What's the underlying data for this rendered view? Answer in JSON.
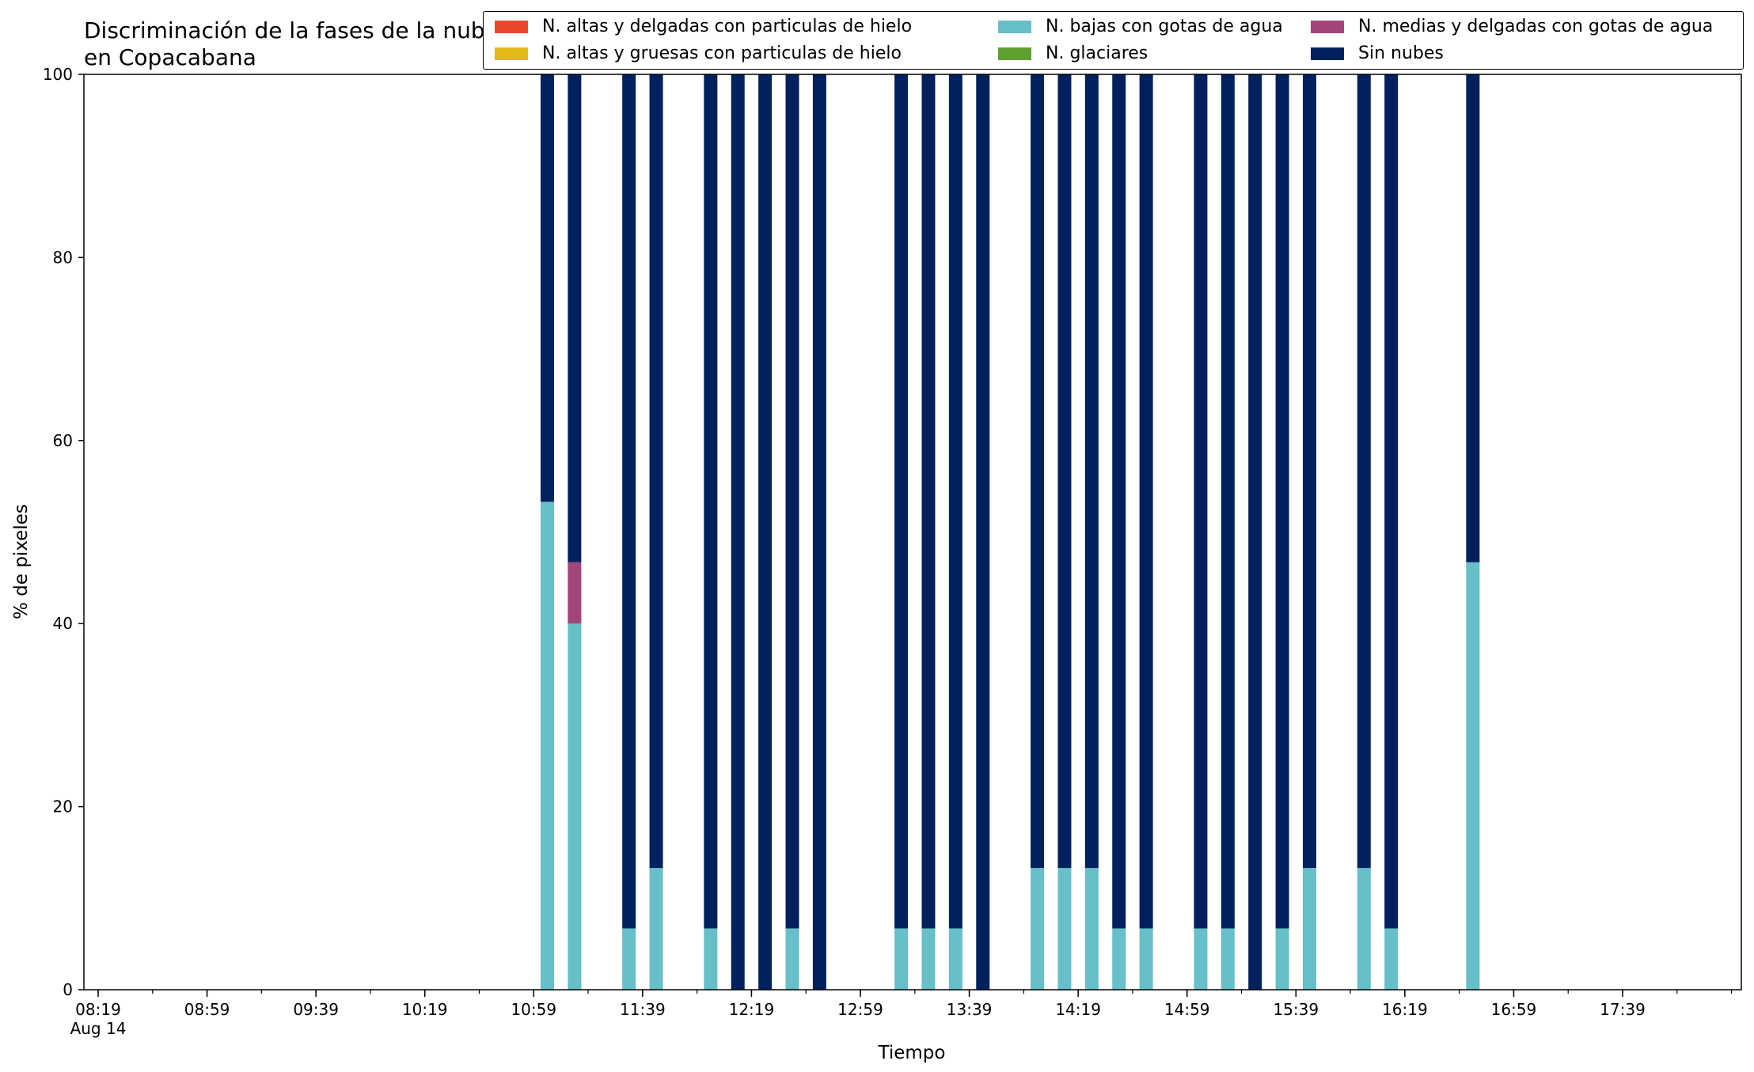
{
  "chart_data": {
    "type": "bar",
    "stacked": true,
    "title": "Discriminación de la fases de la nube en Copacabana",
    "xlabel": "Tiempo",
    "ylabel": "% de pixeles",
    "ylim": [
      0,
      100
    ],
    "yticks": [
      "0",
      "20",
      "40",
      "60",
      "80",
      "100"
    ],
    "xticks": [
      "08:19\nAug 14",
      "08:59",
      "09:39",
      "10:19",
      "10:59",
      "11:39",
      "12:19",
      "12:59",
      "13:39",
      "14:19",
      "14:59",
      "15:39",
      "16:19",
      "16:59",
      "17:39"
    ],
    "legend_position": "top-right",
    "colors": {
      "hielo_delgadas": "#e8492d",
      "hielo_gruesas": "#e4b91c",
      "gotas_bajas": "#66bfc9",
      "glaciares": "#5fa12e",
      "gotas_medias": "#a2457a",
      "sin_nubes": "#00215d"
    },
    "legend": [
      {
        "key": "hielo_delgadas",
        "label": "N. altas y delgadas con particulas de hielo"
      },
      {
        "key": "hielo_gruesas",
        "label": "N. altas y gruesas con particulas de hielo"
      },
      {
        "key": "gotas_bajas",
        "label": "N. bajas con gotas de agua"
      },
      {
        "key": "glaciares",
        "label": "N. glaciares"
      },
      {
        "key": "gotas_medias",
        "label": "N. medias y delgadas con gotas de agua"
      },
      {
        "key": "sin_nubes",
        "label": "Sin nubes"
      }
    ],
    "bars": [
      {
        "time": "11:04",
        "gotas_bajas": 53.3,
        "gotas_medias": 0,
        "sin_nubes": 46.7
      },
      {
        "time": "11:14",
        "gotas_bajas": 40.0,
        "gotas_medias": 6.7,
        "sin_nubes": 53.3
      },
      {
        "time": "11:34",
        "gotas_bajas": 6.7,
        "gotas_medias": 0,
        "sin_nubes": 93.3
      },
      {
        "time": "11:44",
        "gotas_bajas": 13.3,
        "gotas_medias": 0,
        "sin_nubes": 86.7
      },
      {
        "time": "12:04",
        "gotas_bajas": 6.7,
        "gotas_medias": 0,
        "sin_nubes": 93.3
      },
      {
        "time": "12:14",
        "gotas_bajas": 0,
        "gotas_medias": 0,
        "sin_nubes": 100
      },
      {
        "time": "12:24",
        "gotas_bajas": 0,
        "gotas_medias": 0,
        "sin_nubes": 100
      },
      {
        "time": "12:34",
        "gotas_bajas": 6.7,
        "gotas_medias": 0,
        "sin_nubes": 93.3
      },
      {
        "time": "12:44",
        "gotas_bajas": 0,
        "gotas_medias": 0,
        "sin_nubes": 100
      },
      {
        "time": "13:14",
        "gotas_bajas": 6.7,
        "gotas_medias": 0,
        "sin_nubes": 93.3
      },
      {
        "time": "13:24",
        "gotas_bajas": 6.7,
        "gotas_medias": 0,
        "sin_nubes": 93.3
      },
      {
        "time": "13:34",
        "gotas_bajas": 6.7,
        "gotas_medias": 0,
        "sin_nubes": 93.3
      },
      {
        "time": "13:44",
        "gotas_bajas": 0,
        "gotas_medias": 0,
        "sin_nubes": 100
      },
      {
        "time": "14:04",
        "gotas_bajas": 13.3,
        "gotas_medias": 0,
        "sin_nubes": 86.7
      },
      {
        "time": "14:14",
        "gotas_bajas": 13.3,
        "gotas_medias": 0,
        "sin_nubes": 86.7
      },
      {
        "time": "14:24",
        "gotas_bajas": 13.3,
        "gotas_medias": 0,
        "sin_nubes": 86.7
      },
      {
        "time": "14:34",
        "gotas_bajas": 6.7,
        "gotas_medias": 0,
        "sin_nubes": 93.3
      },
      {
        "time": "14:44",
        "gotas_bajas": 6.7,
        "gotas_medias": 0,
        "sin_nubes": 93.3
      },
      {
        "time": "15:04",
        "gotas_bajas": 6.7,
        "gotas_medias": 0,
        "sin_nubes": 93.3
      },
      {
        "time": "15:14",
        "gotas_bajas": 6.7,
        "gotas_medias": 0,
        "sin_nubes": 93.3
      },
      {
        "time": "15:24",
        "gotas_bajas": 0,
        "gotas_medias": 0,
        "sin_nubes": 100
      },
      {
        "time": "15:34",
        "gotas_bajas": 6.7,
        "gotas_medias": 0,
        "sin_nubes": 93.3
      },
      {
        "time": "15:44",
        "gotas_bajas": 13.3,
        "gotas_medias": 0,
        "sin_nubes": 86.7
      },
      {
        "time": "16:04",
        "gotas_bajas": 13.3,
        "gotas_medias": 0,
        "sin_nubes": 86.7
      },
      {
        "time": "16:14",
        "gotas_bajas": 6.7,
        "gotas_medias": 0,
        "sin_nubes": 93.3
      },
      {
        "time": "16:44",
        "gotas_bajas": 46.7,
        "gotas_medias": 0,
        "sin_nubes": 53.3
      }
    ]
  }
}
